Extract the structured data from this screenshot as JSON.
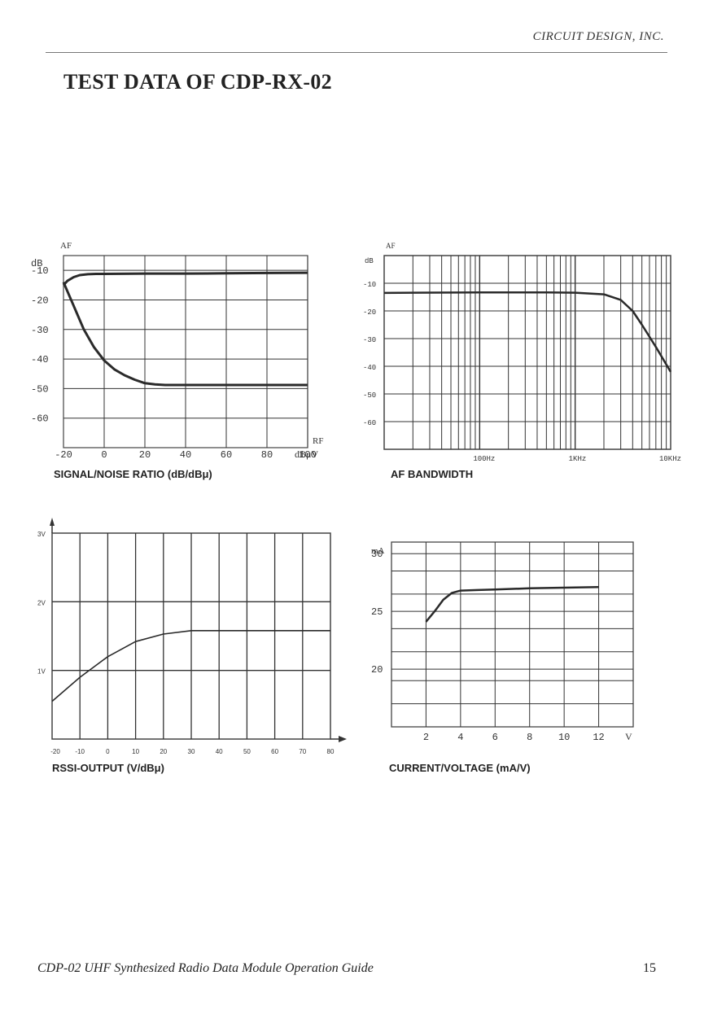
{
  "header": {
    "company": "CIRCUIT DESIGN, INC."
  },
  "title": "TEST DATA OF CDP-RX-02",
  "footer": {
    "guide": "CDP-02 UHF Synthesized Radio Data Module Operation Guide",
    "page_number": "15"
  },
  "chart_data": [
    {
      "id": "snr",
      "type": "line",
      "caption": "SIGNAL/NOISE RATIO (dB/dBμ)",
      "y_unit_label": "dB",
      "top_label": "AF",
      "x_axis_tag": "RF",
      "x_unit_label": "dBμV",
      "x_ticks": [
        -20,
        0,
        20,
        40,
        60,
        80,
        100
      ],
      "y_ticks": [
        -10,
        -20,
        -30,
        -40,
        -50,
        -60
      ],
      "xlim": [
        -20,
        100
      ],
      "ylim": [
        -70,
        -5
      ],
      "grid": true,
      "series": [
        {
          "x": [
            -20,
            -18,
            -15,
            -12,
            -8,
            -4,
            0,
            20,
            40,
            60,
            80,
            100
          ],
          "y": [
            -15,
            -13.5,
            -12.3,
            -11.6,
            -11.3,
            -11.2,
            -11.2,
            -11.1,
            -11.1,
            -11,
            -10.9,
            -10.8
          ]
        },
        {
          "x": [
            -20,
            -15,
            -10,
            -5,
            0,
            5,
            10,
            15,
            20,
            25,
            30,
            40,
            60,
            80,
            100
          ],
          "y": [
            -14,
            -22,
            -30,
            -36,
            -40.5,
            -43.5,
            -45.5,
            -47,
            -48.2,
            -48.6,
            -48.8,
            -48.8,
            -48.8,
            -48.8,
            -48.8
          ]
        }
      ]
    },
    {
      "id": "af-bandwidth",
      "type": "line",
      "caption": "AF BANDWIDTH",
      "y_unit_label": "dB",
      "top_label": "AF",
      "x_scale": "log",
      "x_ticks": [
        "100Hz",
        "1KHz",
        "10KHz"
      ],
      "y_ticks": [
        -10,
        -20,
        -30,
        -40,
        -50,
        -60
      ],
      "xlim": [
        10,
        10000
      ],
      "ylim": [
        -70,
        0
      ],
      "grid": true,
      "series": [
        {
          "x": [
            10,
            100,
            500,
            1000,
            2000,
            3000,
            4000,
            5000,
            7000,
            10000
          ],
          "y": [
            -13.5,
            -13.3,
            -13.3,
            -13.4,
            -14,
            -16,
            -20,
            -25,
            -33,
            -42
          ]
        }
      ]
    },
    {
      "id": "rssi",
      "type": "line",
      "caption": "RSSI-OUTPUT (V/dBμ)",
      "x_ticks": [
        -20,
        -10,
        0,
        10,
        20,
        30,
        40,
        50,
        60,
        70,
        80
      ],
      "y_ticks": [
        "3V",
        "2V",
        "1V"
      ],
      "xlim": [
        -20,
        80
      ],
      "ylim": [
        0,
        3
      ],
      "grid": true,
      "series": [
        {
          "x": [
            -20,
            -10,
            0,
            10,
            20,
            30,
            40,
            50,
            60,
            70,
            80
          ],
          "y": [
            0.55,
            0.9,
            1.2,
            1.42,
            1.53,
            1.58,
            1.58,
            1.58,
            1.58,
            1.58,
            1.58
          ]
        }
      ]
    },
    {
      "id": "current-voltage",
      "type": "line",
      "caption": "CURRENT/VOLTAGE (mA/V)",
      "y_unit_label": "mA",
      "x_unit_label": "V",
      "x_ticks": [
        2,
        4,
        6,
        8,
        10,
        12
      ],
      "y_ticks": [
        30,
        25,
        20
      ],
      "xlim": [
        0,
        14
      ],
      "ylim": [
        15,
        31
      ],
      "grid": true,
      "series": [
        {
          "x": [
            2,
            2.5,
            3,
            3.5,
            4,
            5,
            6,
            8,
            10,
            12
          ],
          "y": [
            24.1,
            25,
            26,
            26.6,
            26.8,
            26.85,
            26.9,
            27,
            27.05,
            27.1
          ]
        }
      ]
    }
  ]
}
